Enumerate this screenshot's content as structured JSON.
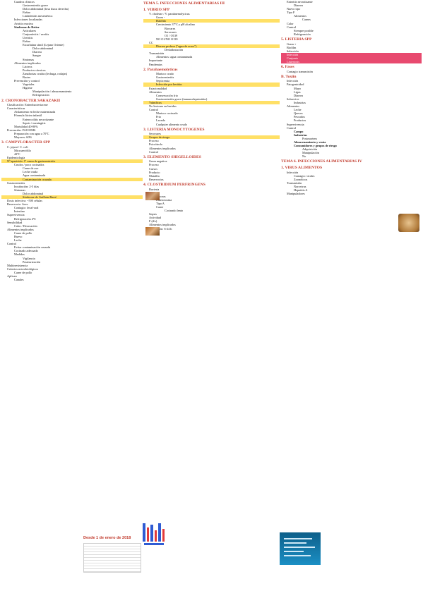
{
  "date_banner": "Desde 1 de enero de 2018",
  "col1": [
    {
      "t": "Cuadros clínicos",
      "c": "ind2"
    },
    {
      "t": "Gastroenteritis grave",
      "c": "ind3"
    },
    {
      "t": "Dolor abdominal (fosa iliaca derecha)",
      "c": "ind3"
    },
    {
      "t": "Fiebre",
      "c": "ind3"
    },
    {
      "t": "Linfadenitis mesentérica",
      "c": "ind3"
    },
    {
      "t": "Infecciones localizadas",
      "c": "ind2"
    },
    {
      "t": "Artritis reactiva",
      "c": "ind2"
    },
    {
      "t": "Síndrome de Reiter",
      "c": "ind2 b"
    },
    {
      "t": "Articulares",
      "c": "ind3"
    },
    {
      "t": "Conjuntivitis / uveítis",
      "c": "ind3"
    },
    {
      "t": "Uretritis",
      "c": "ind3"
    },
    {
      "t": "Fiebre",
      "c": "ind3"
    },
    {
      "t": "Escarlatina símil (Lejano Oriente)",
      "c": "ind3"
    },
    {
      "t": "Dolor abdominal",
      "c": "ind4"
    },
    {
      "t": "Diarrea",
      "c": "ind4"
    },
    {
      "t": "Sangre",
      "c": "ind4"
    },
    {
      "t": "Sintomas",
      "c": "ind3"
    },
    {
      "t": "Alimentos implicados",
      "c": "ind2"
    },
    {
      "t": "Lácteos",
      "c": "ind3"
    },
    {
      "t": "Productos cárnicos",
      "c": "ind3"
    },
    {
      "t": "Zanahorias crudas (lechuga, rodajas)",
      "c": "ind3"
    },
    {
      "t": "Brotes",
      "c": "ind3"
    },
    {
      "t": "Prevención y control",
      "c": "ind2"
    },
    {
      "t": "Vegetales",
      "c": "ind3"
    },
    {
      "t": "Higiene",
      "c": "ind3"
    },
    {
      "t": "Manipulación / almacenamiento",
      "c": "ind4"
    },
    {
      "t": "Refrigeración",
      "c": "ind4"
    },
    {
      "t": "",
      "c": ""
    },
    {
      "t": "2. CRONOBACTER SAKAZAKII",
      "c": "red"
    },
    {
      "t": "Clasificación: Enterobacteriaceae",
      "c": "ind1"
    },
    {
      "t": "Características",
      "c": "ind1"
    },
    {
      "t": "Aislamiento en leche maternizada",
      "c": "ind2"
    },
    {
      "t": "Fórmula láctea infantil",
      "c": "ind2"
    },
    {
      "t": "Enterocolitis necrotizante",
      "c": "ind3"
    },
    {
      "t": "Sepsis / meningitis",
      "c": "ind3"
    },
    {
      "t": "Mortalidad 40-80%",
      "c": "ind2"
    },
    {
      "t": "Prevención: FAO/OMS",
      "c": "ind1"
    },
    {
      "t": "Preparación con agua a 70ºC",
      "c": "ind2"
    },
    {
      "t": "Mayores: 60%",
      "c": "ind2"
    },
    {
      "t": "",
      "c": ""
    },
    {
      "t": "3. CAMPYLOBACTER SPP",
      "c": "red"
    },
    {
      "t": "C. jejuni / C. coli",
      "c": "ind1"
    },
    {
      "t": "Microaerófilo",
      "c": "ind2"
    },
    {
      "t": "42ºC",
      "c": "ind2"
    },
    {
      "t": "Epidemiología",
      "c": "ind1"
    },
    {
      "t": "Nº aparición: 1ª causa de gastroenteritis",
      "c": "ind1 hl-yellow"
    },
    {
      "t": "Crudos / poco cocinados",
      "c": "ind2"
    },
    {
      "t": "Carne de ave",
      "c": "ind3"
    },
    {
      "t": "Leche cruda",
      "c": "ind3"
    },
    {
      "t": "Agua contaminada",
      "c": "ind3"
    },
    {
      "t": "Contaminación cruzada",
      "c": "ind3 hl-yellow"
    },
    {
      "t": "Gastroenteritis",
      "c": "ind1"
    },
    {
      "t": "Incubación: 2-5 días",
      "c": "ind2"
    },
    {
      "t": "Síntomas",
      "c": "ind2"
    },
    {
      "t": "Dolor abdominal",
      "c": "ind3"
    },
    {
      "t": "Síndrome de Guillain-Barré",
      "c": "ind3 hl-yellow"
    },
    {
      "t": "Dosis infectiva: ~500 células",
      "c": "ind1"
    },
    {
      "t": "Reservorio: Aves",
      "c": "ind1"
    },
    {
      "t": "Contagio: fecal-oral",
      "c": "ind2"
    },
    {
      "t": "Intestino",
      "c": "ind2"
    },
    {
      "t": "Supervivencia",
      "c": "ind1"
    },
    {
      "t": "Refrigeración 4ºC",
      "c": "ind2"
    },
    {
      "t": "Sensibilidad",
      "c": "ind1"
    },
    {
      "t": "Calor / Desecación",
      "c": "ind2"
    },
    {
      "t": "Alimentos implicados",
      "c": "ind1"
    },
    {
      "t": "Carne de pollo",
      "c": "ind2"
    },
    {
      "t": "Huevo",
      "c": "ind2"
    },
    {
      "t": "Leche",
      "c": "ind2"
    },
    {
      "t": "Control",
      "c": "ind1"
    },
    {
      "t": "Evitar contaminación cruzada",
      "c": "ind2"
    },
    {
      "t": "Cocinado adecuado",
      "c": "ind2"
    },
    {
      "t": "Medidas",
      "c": "ind2"
    },
    {
      "t": "Vigilancia",
      "c": "ind3"
    },
    {
      "t": "Pasteurización",
      "c": "ind3"
    },
    {
      "t": "Multirresistencia",
      "c": "ind1"
    },
    {
      "t": "Criterios microbiológicos",
      "c": "ind1"
    },
    {
      "t": "Carne de pollo",
      "c": "ind2"
    },
    {
      "t": "Aplican",
      "c": "ind1"
    },
    {
      "t": "Canales",
      "c": "ind2"
    }
  ],
  "col2": [
    {
      "t": "TEMA 5. INFECCIONES ALIMENTARIAS III",
      "c": "red"
    },
    {
      "t": "1. VIBRIO SPP",
      "c": "red"
    },
    {
      "t": "V. cholerae / V. parahaemolyticus",
      "c": "ind1"
    },
    {
      "t": "Gram -",
      "c": "ind2"
    },
    {
      "t": "Halófilo",
      "c": "ind2 hl-yellow"
    },
    {
      "t": "Crecimiento 37ºC y pH alcalino",
      "c": "ind2"
    },
    {
      "t": "Biovares",
      "c": "ind3"
    },
    {
      "t": "Serovares",
      "c": "ind3"
    },
    {
      "t": "O1 / O139",
      "c": "ind3"
    },
    {
      "t": "NO O1/NO O139",
      "c": "ind2"
    },
    {
      "t": "CC",
      "c": "ind1"
    },
    {
      "t": "Diarrea profusa (\"agua de arroz\")",
      "c": "ind2 hl-yellow"
    },
    {
      "t": "Deshidratación",
      "c": "ind3"
    },
    {
      "t": "Transmisión",
      "c": "ind1"
    },
    {
      "t": "Alimentos: agua contaminada",
      "c": "ind2"
    },
    {
      "t": "Importante",
      "c": "ind1"
    },
    {
      "t": "Pandemias",
      "c": "ind1"
    },
    {
      "t": "",
      "c": ""
    },
    {
      "t": "2. Parahaemolyticus",
      "c": "red"
    },
    {
      "t": "Marisco crudo",
      "c": "ind2"
    },
    {
      "t": "Gastroenteritis",
      "c": "ind2"
    },
    {
      "t": "Septicemia",
      "c": "ind2"
    },
    {
      "t": "Infección por heridas",
      "c": "ind2 hl-yellow"
    },
    {
      "t": "Estacionalidad",
      "c": "ind1"
    },
    {
      "t": "Alimentos",
      "c": "ind1"
    },
    {
      "t": "Conservación frio",
      "c": "ind2"
    },
    {
      "t": "Gastroenteritis grave (inmunodeprimidos)",
      "c": "ind2"
    },
    {
      "t": "Vulnificus",
      "c": "ind1 hl-yellow"
    },
    {
      "t": "No lesiones en heridas",
      "c": "ind1"
    },
    {
      "t": "Control",
      "c": "ind1"
    },
    {
      "t": "Marisco cocinado",
      "c": "ind2"
    },
    {
      "t": "Frio",
      "c": "ind2"
    },
    {
      "t": "Lavado",
      "c": "ind2"
    },
    {
      "t": "Cualquier alimento crudo",
      "c": "ind2"
    },
    {
      "t": "",
      "c": ""
    },
    {
      "t": "3. LISTERIA MONOCYTOGENES",
      "c": "red"
    },
    {
      "t": "Serovares",
      "c": "ind1"
    },
    {
      "t": "Grupos de riesgo",
      "c": "ind1 hl-yellow"
    },
    {
      "t": "Proceso",
      "c": "ind1"
    },
    {
      "t": "Psicrótrofo",
      "c": "ind1"
    },
    {
      "t": "Alimentos implicados",
      "c": "ind1"
    },
    {
      "t": "Control",
      "c": "ind1"
    },
    {
      "t": "",
      "c": ""
    },
    {
      "t": "3. ELEMENTO SHIGELLOIDES",
      "c": "red"
    },
    {
      "t": "Gram negativa",
      "c": "ind1"
    },
    {
      "t": "Proceso",
      "c": "ind1"
    },
    {
      "t": "Cursos",
      "c": "ind1"
    },
    {
      "t": "Producto",
      "c": "ind1"
    },
    {
      "t": "Mataffia",
      "c": "ind1"
    },
    {
      "t": "Reservorios",
      "c": "ind1"
    },
    {
      "t": "",
      "c": ""
    },
    {
      "t": "4. CLOSTRIDIUM PERFRINGENS",
      "c": "red"
    },
    {
      "t": "Bacteria",
      "c": "ind1"
    },
    {
      "t": "Produce",
      "c": "ind1"
    },
    {
      "t": "Esporas",
      "c": "ind2"
    },
    {
      "t": "Enterotoxina",
      "c": "ind2"
    },
    {
      "t": "Tipo A",
      "c": "ind2"
    },
    {
      "t": "Carne",
      "c": "ind2"
    },
    {
      "t": "Cocinado lento",
      "c": "ind3"
    },
    {
      "t": "Sepsis",
      "c": "ind1"
    },
    {
      "t": "Actividad",
      "c": "ind1"
    },
    {
      "t": "F (d/s)",
      "c": "ind1"
    },
    {
      "t": "Alimentos implicados",
      "c": "ind1"
    },
    {
      "t": "Incubación: 6-24 h",
      "c": "ind1"
    },
    {
      "t": "Control",
      "c": "ind1"
    }
  ],
  "col3": [
    {
      "t": "Enteritis necrotizante",
      "c": "ind1"
    },
    {
      "t": "Diarrea",
      "c": "ind2"
    },
    {
      "t": "Nuevo tipo",
      "c": "ind1"
    },
    {
      "t": "Tipo F",
      "c": "ind1"
    },
    {
      "t": "Alimentos",
      "c": "ind2"
    },
    {
      "t": "Carnes",
      "c": "ind3"
    },
    {
      "t": "Calor",
      "c": "ind1"
    },
    {
      "t": "Control",
      "c": "ind1"
    },
    {
      "t": "Siempre posible",
      "c": "ind2"
    },
    {
      "t": "Refrigeración",
      "c": "ind2"
    },
    {
      "t": "",
      "c": ""
    },
    {
      "t": "5. LISTERIA SPP",
      "c": "red"
    },
    {
      "t": "Gram +",
      "c": "ind1"
    },
    {
      "t": "Biofilm",
      "c": "ind1"
    },
    {
      "t": "Selección",
      "c": "ind1"
    },
    {
      "t": "Infección",
      "c": "ind1 hl-pink"
    },
    {
      "t": "Conjunto",
      "c": "ind1 hl-pink"
    },
    {
      "t": "Listeriosis",
      "c": "ind1 hl-pink"
    },
    {
      "t": "6. Fases",
      "c": "red"
    },
    {
      "t": "Contagio transmisión",
      "c": "ind1"
    },
    {
      "t": "",
      "c": ""
    },
    {
      "t": "B. Toxiin",
      "c": "red"
    },
    {
      "t": "Infección",
      "c": "ind1"
    },
    {
      "t": "Patogenicidad",
      "c": "ind1"
    },
    {
      "t": "Mayo",
      "c": "ind2"
    },
    {
      "t": "Ligas",
      "c": "ind2"
    },
    {
      "t": "Diarrea",
      "c": "ind2"
    },
    {
      "t": "Sobrevive",
      "c": "ind1"
    },
    {
      "t": "Industrias",
      "c": "ind2"
    },
    {
      "t": "Alimentos",
      "c": "ind1"
    },
    {
      "t": "Leche",
      "c": "ind2"
    },
    {
      "t": "Quesos",
      "c": "ind2"
    },
    {
      "t": "Pescados",
      "c": "ind2"
    },
    {
      "t": "Productos",
      "c": "ind2"
    },
    {
      "t": "Supervivencia",
      "c": "ind1"
    },
    {
      "t": "Control",
      "c": "ind1"
    },
    {
      "t": "Campo",
      "c": "ind2 b"
    },
    {
      "t": "Industrias",
      "c": "ind2 b"
    },
    {
      "t": "Postmortem",
      "c": "ind3"
    },
    {
      "t": "Almacenamiento y venta",
      "c": "ind2 b"
    },
    {
      "t": "Consumidores y grupos de riesgo",
      "c": "ind2 b"
    },
    {
      "t": "Adquisición",
      "c": "ind3"
    },
    {
      "t": "Manipulación",
      "c": "ind3"
    },
    {
      "t": "No",
      "c": "ind3"
    },
    {
      "t": "",
      "c": ""
    },
    {
      "t": "TEMA 6. INFECCIONES ALIMENTARIAS IV",
      "c": "red"
    },
    {
      "t": "1. VIRUS ALIMENTOS",
      "c": "red"
    },
    {
      "t": "Infección",
      "c": "ind1"
    },
    {
      "t": "Contagio: virales",
      "c": "ind2"
    },
    {
      "t": "Zoonóticos",
      "c": "ind2"
    },
    {
      "t": "Transmisión",
      "c": "ind1"
    },
    {
      "t": "Norovirus",
      "c": "ind2"
    },
    {
      "t": "Hepatitis A",
      "c": "ind2"
    },
    {
      "t": "Manipuladores",
      "c": "ind1"
    }
  ]
}
